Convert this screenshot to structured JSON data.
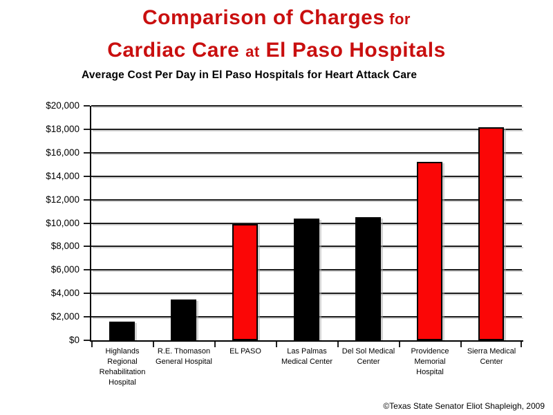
{
  "slide": {
    "title": {
      "line1_main": "Comparison of Charges",
      "line1_small": " for",
      "line2_main_a": "Cardiac Care ",
      "line2_small": "at",
      "line2_main_b": " El Paso Hospitals",
      "color": "#c90f0f"
    },
    "subtitle": "Average Cost Per Day in El Paso Hospitals for Heart Attack Care",
    "footer_credit": "©Texas State Senator Eliot Shapleigh, 2009"
  },
  "chart_data": {
    "type": "bar",
    "title": "Average Cost Per Day in El Paso Hospitals for Heart Attack Care",
    "categories": [
      "Highlands Regional Rehabilitation Hospital",
      "R.E. Thomason General Hospital",
      "EL PASO",
      "Las Palmas Medical Center",
      "Del Sol Medical Center",
      "Providence Memorial Hospital",
      "Sierra Medical Center"
    ],
    "category_lines": [
      [
        "Highlands",
        "Regional",
        "Rehabilitation",
        "Hospital"
      ],
      [
        "R.E. Thomason",
        "General Hospital"
      ],
      [
        "EL PASO"
      ],
      [
        "Las Palmas",
        "Medical Center"
      ],
      [
        "Del Sol Medical",
        "Center"
      ],
      [
        "Providence",
        "Memorial",
        "Hospital"
      ],
      [
        "Sierra Medical",
        "Center"
      ]
    ],
    "values": [
      1600,
      3500,
      9900,
      10400,
      10500,
      15200,
      18200
    ],
    "bar_colors": [
      "#000000",
      "#000000",
      "#fb0606",
      "#000000",
      "#000000",
      "#fb0606",
      "#fb0606"
    ],
    "bar_outline_color": "#000000",
    "xlabel": "",
    "ylabel": "",
    "ylim": [
      0,
      20000
    ],
    "ytick_step": 2000,
    "ytick_labels": [
      "$0",
      "$2,000",
      "$4,000",
      "$6,000",
      "$8,000",
      "$10,000",
      "$12,000",
      "$14,000",
      "$16,000",
      "$18,000",
      "$20,000"
    ],
    "grid": true,
    "legend": false
  }
}
